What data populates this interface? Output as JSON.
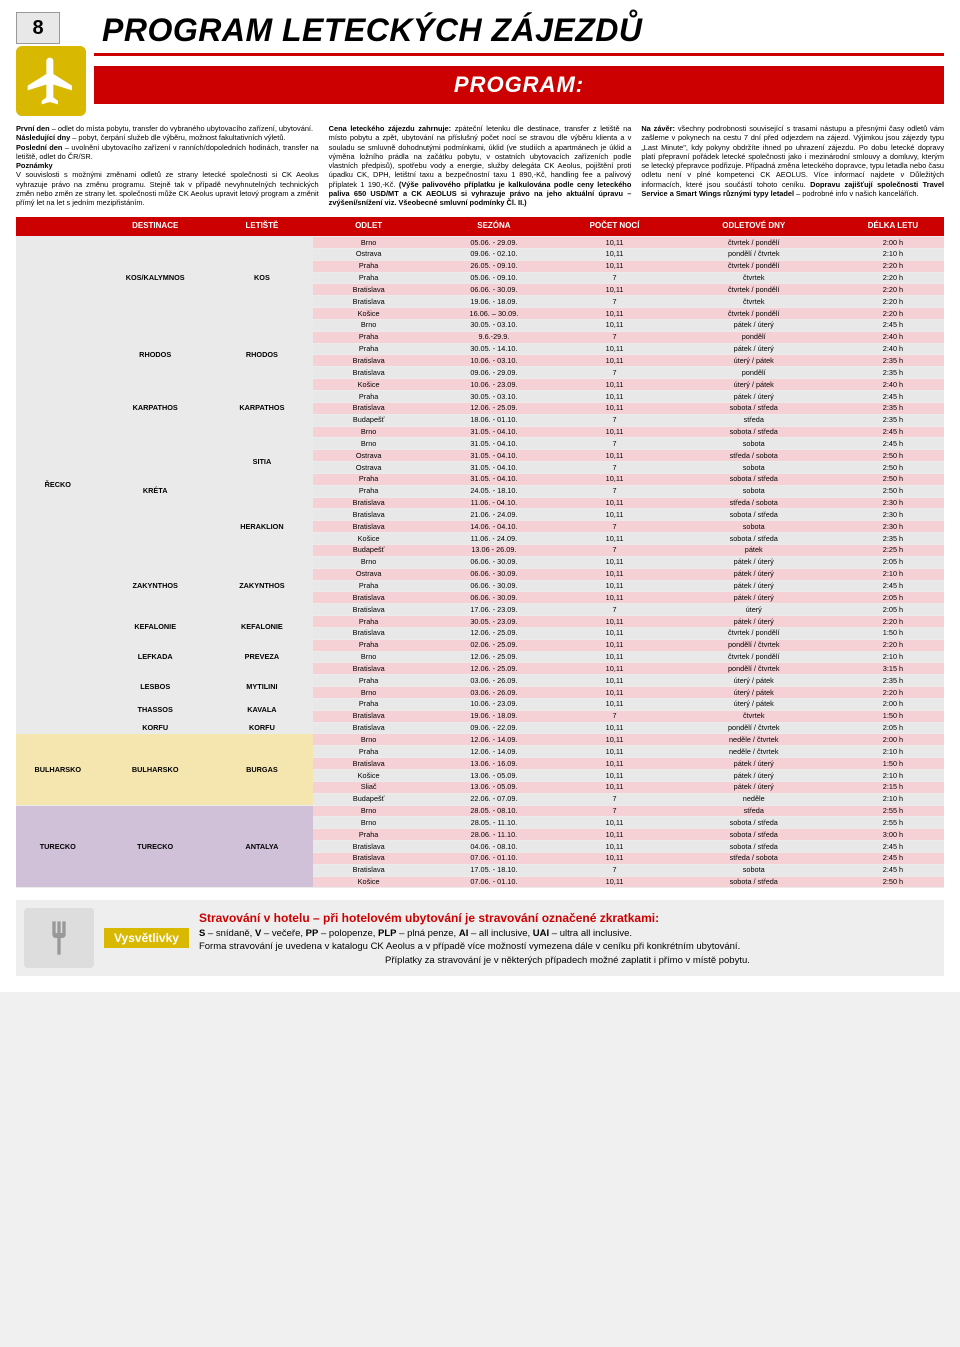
{
  "page_number": "8",
  "main_title": "PROGRAM LETECKÝCH ZÁJEZDŮ",
  "red_bar": "PROGRAM:",
  "colors": {
    "accent": "#c00",
    "yellow": "#d8b800"
  },
  "text_columns": {
    "col1_html": "<span class='b'>První den</span> – odlet do místa pobytu, transfer do vybraného ubytovacího zařízení, ubytování.<br><span class='b'>Následující dny</span> – pobyt, čerpání služeb dle výběru, možnost fakultativních výletů.<br><span class='b'>Poslední den</span> – uvolnění ubytovacího zařízení v ranních/dopoledních hodinách, transfer na letiště, odlet do ČR/SR.<br><span class='b'>Poznámky</span><br>V souvislosti s možnými změnami odletů ze strany letecké společnosti si CK Aeolus vyhrazuje právo na změnu programu. Stejně tak v případě nevyhnutelných technických změn nebo změn ze strany let. společnosti může CK Aeolus upravit letový program a změnit přímý let na let s jedním mezipřistáním.",
    "col2_html": "<span class='b'>Cena leteckého zájezdu zahrnuje:</span> zpáteční letenku dle destinace, transfer z letiště na místo pobytu a zpět, ubytování na příslušný počet nocí se stravou dle výběru klienta a v souladu se smluvně dohodnutými podmínkami, úklid (ve studiích a apartmánech je úklid a výměna ložního prádla na začátku pobytu, v ostatních ubytovacích zařízeních podle vlastních předpisů), spotřebu vody a energie, služby delegáta CK Aeolus, pojištění proti úpadku CK, DPH, letištní taxu a bezpečnostní taxu 1 890,-Kč, handling fee a palivový příplatek 1 190,-Kč. <span class='b'>(Výše palivového příplatku je kalkulována podle ceny leteckého paliva 650 USD/MT a CK AEOLUS si vyhrazuje právo na jeho aktuální úpravu – zvýšení/snížení viz. Všeobecné smluvní podmínky Čl. II.)</span>",
    "col3_html": "<span class='b'>Na závěr:</span> všechny podrobnosti související s trasami nástupu a přesnými časy odletů vám zašleme v pokynech na cestu 7 dní před odjezdem na zájezd. Výjimkou jsou zájezdy typu „Last Minute\", kdy pokyny obdržíte ihned po uhrazení zájezdu. Po dobu letecké dopravy platí přepravní pořádek letecké společnosti jako i mezinárodní smlouvy a domluvy, kterým se letecký přepravce podřizuje. Případná změna leteckého dopravce, typu letadla nebo času odletu není v plné kompetenci CK AEOLUS. Více informací najdete v Důležitých informacích, které jsou součástí tohoto ceníku. <span class='b'>Dopravu zajišťují společnosti Travel Service a Smart Wings různými typy letadel</span> – podrobné info v našich kancelářích."
  },
  "schedule": {
    "columns": [
      "",
      "DESTINACE",
      "LETIŠTĚ",
      "ODLET",
      "SEZÓNA",
      "POČET NOCÍ",
      "ODLETOVÉ DNY",
      "DÉLKA LETU"
    ],
    "col_widths": [
      "9%",
      "12%",
      "11%",
      "12%",
      "15%",
      "11%",
      "19%",
      "11%"
    ],
    "col_bg": [
      "bg-grey",
      "bg-yellow",
      "bg-purple",
      "bg-orange"
    ],
    "groups": [
      {
        "country": "ŘECKO",
        "bg": "bg-grey",
        "blocks": [
          {
            "destination": "KOS/KALYMNOS",
            "airport": "KOS",
            "rows": [
              [
                "Brno",
                "05.06. - 29.09.",
                "10,11",
                "čtvrtek / pondělí",
                "2:00 h"
              ],
              [
                "Ostrava",
                "09.06. - 02.10.",
                "10,11",
                "pondělí / čtvrtek",
                "2:10 h"
              ],
              [
                "Praha",
                "26.05. - 09.10.",
                "10,11",
                "čtvrtek / pondělí",
                "2:20 h"
              ],
              [
                "Praha",
                "05.06. - 09.10.",
                "7",
                "čtvrtek",
                "2:20 h"
              ],
              [
                "Bratislava",
                "06.06. - 30.09.",
                "10,11",
                "čtvrtek / pondělí",
                "2:20 h"
              ],
              [
                "Bratislava",
                "19.06. - 18.09.",
                "7",
                "čtvrtek",
                "2:20 h"
              ],
              [
                "Košice",
                "16.06. – 30.09.",
                "10,11",
                "čtvrtek / pondělí",
                "2:20 h"
              ]
            ]
          },
          {
            "destination": "RHODOS",
            "airport": "RHODOS",
            "rows": [
              [
                "Brno",
                "30.05. - 03.10.",
                "10,11",
                "pátek / úterý",
                "2:45 h"
              ],
              [
                "Praha",
                "9.6.-29.9.",
                "7",
                "pondělí",
                "2:40 h"
              ],
              [
                "Praha",
                "30.05. - 14.10.",
                "10,11",
                "pátek / úterý",
                "2:40 h"
              ],
              [
                "Bratislava",
                "10.06. - 03.10.",
                "10,11",
                "úterý / pátek",
                "2:35 h"
              ],
              [
                "Bratislava",
                "09.06. - 29.09.",
                "7",
                "pondělí",
                "2:35 h"
              ],
              [
                "Košice",
                "10.06. - 23.09.",
                "10,11",
                "úterý / pátek",
                "2:40 h"
              ]
            ]
          },
          {
            "destination": "KARPATHOS",
            "airport": "KARPATHOS",
            "rows": [
              [
                "Praha",
                "30.05. - 03.10.",
                "10,11",
                "pátek / úterý",
                "2:45 h"
              ],
              [
                "Bratislava",
                "12.06. - 25.09.",
                "10,11",
                "sobota / středa",
                "2:35 h"
              ],
              [
                "Budapešť",
                "18.06. - 01.10.",
                "7",
                "středa",
                "2:35 h"
              ]
            ]
          },
          {
            "destination": "KRÉTA",
            "airport": [
              "SITIA",
              "HERAKLION"
            ],
            "rows": [
              [
                "Brno",
                "31.05. - 04.10.",
                "10,11",
                "sobota / středa",
                "2:45 h"
              ],
              [
                "Brno",
                "31.05. - 04.10.",
                "7",
                "sobota",
                "2:45 h"
              ],
              [
                "Ostrava",
                "31.05. - 04.10.",
                "10,11",
                "středa / sobota",
                "2:50 h"
              ],
              [
                "Ostrava",
                "31.05. - 04.10.",
                "7",
                "sobota",
                "2:50 h"
              ],
              [
                "Praha",
                "31.05. - 04.10.",
                "10,11",
                "sobota / středa",
                "2:50 h"
              ],
              [
                "Praha",
                "24.05. - 18.10.",
                "7",
                "sobota",
                "2:50 h"
              ],
              [
                "Bratislava",
                "11.06. - 04.10.",
                "10,11",
                "středa / sobota",
                "2:30 h"
              ],
              [
                "Bratislava",
                "21.06. - 24.09.",
                "10,11",
                "sobota / středa",
                "2:30 h"
              ],
              [
                "Bratislava",
                "14.06. - 04.10.",
                "7",
                "sobota",
                "2:30 h"
              ],
              [
                "Košice",
                "11.06. - 24.09.",
                "10,11",
                "sobota / středa",
                "2:35 h"
              ],
              [
                "Budapešť",
                "13.06 - 26.09.",
                "7",
                "pátek",
                "2:25 h"
              ]
            ]
          },
          {
            "destination": "ZAKYNTHOS",
            "airport": "ZAKYNTHOS",
            "rows": [
              [
                "Brno",
                "06.06. - 30.09.",
                "10,11",
                "pátek / úterý",
                "2:05 h"
              ],
              [
                "Ostrava",
                "06.06. - 30.09.",
                "10,11",
                "pátek / úterý",
                "2:10 h"
              ],
              [
                "Praha",
                "06.06. - 30.09.",
                "10,11",
                "pátek / úterý",
                "2:45 h"
              ],
              [
                "Bratislava",
                "06.06. - 30.09.",
                "10,11",
                "pátek / úterý",
                "2:05 h"
              ],
              [
                "Bratislava",
                "17.06. - 23.09.",
                "7",
                "úterý",
                "2:05 h"
              ]
            ]
          },
          {
            "destination": "KEFALONIE",
            "airport": "KEFALONIE",
            "rows": [
              [
                "Praha",
                "30.05. - 23.09.",
                "10,11",
                "pátek / úterý",
                "2:20 h"
              ],
              [
                "Bratislava",
                "12.06. - 25.09.",
                "10,11",
                "čtvrtek / pondělí",
                "1:50 h"
              ]
            ]
          },
          {
            "destination": "LEFKADA",
            "airport": "PREVEZA",
            "rows": [
              [
                "Praha",
                "02.06. - 25.09.",
                "10,11",
                "pondělí / čtvrtek",
                "2:20 h"
              ],
              [
                "Brno",
                "12.06. - 25.09.",
                "10,11",
                "čtvrtek / pondělí",
                "2:10 h"
              ],
              [
                "Bratislava",
                "12.06. - 25.09.",
                "10,11",
                "pondělí / čtvrtek",
                "3:15 h"
              ]
            ]
          },
          {
            "destination": "LESBOS",
            "airport": "MYTILINI",
            "rows": [
              [
                "Praha",
                "03.06. - 26.09.",
                "10,11",
                "úterý / pátek",
                "2:35 h"
              ],
              [
                "Brno",
                "03.06. - 26.09.",
                "10,11",
                "úterý / pátek",
                "2:20 h"
              ]
            ]
          },
          {
            "destination": "THASSOS",
            "airport": "KAVALA",
            "rows": [
              [
                "Praha",
                "10.06. - 23.09.",
                "10,11",
                "úterý / pátek",
                "2:00 h"
              ],
              [
                "Bratislava",
                "19.06. - 18.09.",
                "7",
                "čtvrtek",
                "1:50 h"
              ]
            ]
          },
          {
            "destination": "KORFU",
            "airport": "KORFU",
            "rows": [
              [
                "Bratislava",
                "09.06. - 22.09.",
                "10,11",
                "pondělí / čtvrtek",
                "2:05 h"
              ]
            ]
          }
        ]
      },
      {
        "country": "BULHARSKO",
        "bg": "bg-yellow",
        "blocks": [
          {
            "destination": "BULHARSKO",
            "airport": "BURGAS",
            "rows": [
              [
                "Brno",
                "12.06. - 14.09.",
                "10,11",
                "neděle / čtvrtek",
                "2:00 h"
              ],
              [
                "Praha",
                "12.06. - 14.09.",
                "10,11",
                "neděle / čtvrtek",
                "2:10 h"
              ],
              [
                "Bratislava",
                "13.06. - 16.09.",
                "10,11",
                "pátek / úterý",
                "1:50 h"
              ],
              [
                "Košice",
                "13.06. - 05.09.",
                "10,11",
                "pátek / úterý",
                "2:10 h"
              ],
              [
                "Sliač",
                "13.06. - 05.09.",
                "10,11",
                "pátek / úterý",
                "2:15 h"
              ],
              [
                "Budapešť",
                "22.06. - 07.09.",
                "7",
                "neděle",
                "2:10 h"
              ]
            ]
          }
        ]
      },
      {
        "country": "TURECKO",
        "bg": "bg-purple",
        "blocks": [
          {
            "destination": "TURECKO",
            "airport": "ANTALYA",
            "rows": [
              [
                "Brno",
                "28.05. - 08.10.",
                "7",
                "středa",
                "2:55 h"
              ],
              [
                "Brno",
                "28.05. - 11.10.",
                "10,11",
                "sobota / středa",
                "2:55 h"
              ],
              [
                "Praha",
                "28.06. - 11.10.",
                "10,11",
                "sobota / středa",
                "3:00 h"
              ],
              [
                "Bratislava",
                "04.06. - 08.10.",
                "10,11",
                "sobota / středa",
                "2:45 h"
              ],
              [
                "Bratislava",
                "07.06. - 01.10.",
                "10,11",
                "středa / sobota",
                "2:45 h"
              ],
              [
                "Bratislava",
                "17.05. - 18.10.",
                "7",
                "sobota",
                "2:45 h"
              ],
              [
                "Košice",
                "07.06. - 01.10.",
                "10,11",
                "sobota / středa",
                "2:50 h"
              ]
            ]
          }
        ]
      }
    ]
  },
  "legend": {
    "tab": "Vysvětlivky",
    "title": "Stravování v hotelu – při hotelovém ubytování je stravování označené zkratkami:",
    "line2": "<b>S</b> – snídaně, <b>V</b> – večeře, <b>PP</b> – polopenze, <b>PLP</b> – plná penze, <b>AI</b> – all inclusive, <b>UAI</b> – ultra all inclusive.",
    "line3": "Forma stravování je uvedena v katalogu CK Aeolus a v případě více možností vymezena dále v ceníku při konkrétním ubytování.",
    "line4": "Příplatky za stravování je v některých případech možné zaplatit i přímo v místě pobytu."
  }
}
